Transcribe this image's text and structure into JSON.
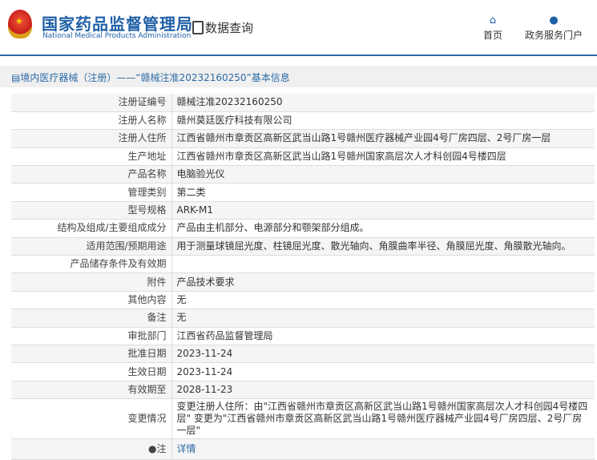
{
  "header": {
    "brand_cn": "国家药品监督管理局",
    "brand_en": "National Medical Products Administration",
    "section": "数据查询",
    "nav": [
      {
        "label": "首页",
        "icon": "home-icon"
      },
      {
        "label": "政务服务门户",
        "icon": "user-icon"
      }
    ]
  },
  "breadcrumb": "境内医疗器械（注册）——“赣械注准20232160250”基本信息",
  "rows": [
    {
      "label": "注册证编号",
      "value": "赣械注准20232160250"
    },
    {
      "label": "注册人名称",
      "value": "赣州莫廷医疗科技有限公司"
    },
    {
      "label": "注册人住所",
      "value": "江西省赣州市章贡区高新区武当山路1号赣州医疗器械产业园4号厂房四层、2号厂房一层"
    },
    {
      "label": "生产地址",
      "value": "江西省赣州市章贡区高新区武当山路1号赣州国家高层次人才科创园4号楼四层"
    },
    {
      "label": "产品名称",
      "value": "电脑验光仪"
    },
    {
      "label": "管理类别",
      "value": "第二类"
    },
    {
      "label": "型号规格",
      "value": "ARK-M1"
    },
    {
      "label": "结构及组成/主要组成成分",
      "value": "产品由主机部分、电源部分和颚架部分组成。"
    },
    {
      "label": "适用范围/预期用途",
      "value": "用于测量球镜屈光度、柱镜屈光度、散光轴向、角膜曲率半径、角膜屈光度、角膜散光轴向。"
    },
    {
      "label": "产品储存条件及有效期",
      "value": ""
    },
    {
      "label": "附件",
      "value": "产品技术要求"
    },
    {
      "label": "其他内容",
      "value": "无"
    },
    {
      "label": "备注",
      "value": "无"
    },
    {
      "label": "审批部门",
      "value": "江西省药品监督管理局"
    },
    {
      "label": "批准日期",
      "value": "2023-11-24"
    },
    {
      "label": "生效日期",
      "value": "2023-11-24"
    },
    {
      "label": "有效期至",
      "value": "2028-11-23"
    },
    {
      "label": "变更情况",
      "value": "变更注册人住所：由\"江西省赣州市章贡区高新区武当山路1号赣州国家高层次人才科创园4号楼四层\" 变更为\"江西省赣州市章贡区高新区武当山路1号赣州医疗器械产业园4号厂房四层、2号厂房一层\""
    }
  ],
  "note": {
    "label": "注",
    "link": "详情"
  }
}
